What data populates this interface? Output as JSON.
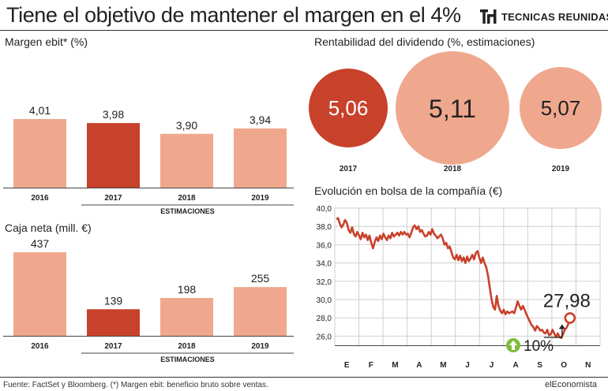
{
  "header": {
    "title": "Tiene el objetivo de mantener el margen en el 4%",
    "logo_text": "TECNICAS REUNIDAS"
  },
  "colors": {
    "highlight": "#c8412b",
    "light": "#efa88d",
    "line": "#c8412b"
  },
  "footer": {
    "source": "Fuente: FactSet y Bloomberg. (*) Margen ebit: beneficio bruto sobre ventas.",
    "brand": "elEconomista"
  },
  "chart_data": [
    {
      "type": "bar",
      "title": "Margen ebit* (%)",
      "categories": [
        "2016",
        "2017",
        "2018",
        "2019"
      ],
      "values": [
        4.01,
        3.98,
        3.9,
        3.94
      ],
      "value_labels": [
        "4,01",
        "3,98",
        "3,90",
        "3,94"
      ],
      "highlight_index": 1,
      "group_label": "ESTIMACIONES"
    },
    {
      "type": "bar",
      "title": "Caja neta (mill. €)",
      "categories": [
        "2016",
        "2017",
        "2018",
        "2019"
      ],
      "values": [
        437,
        139,
        198,
        255
      ],
      "value_labels": [
        "437",
        "139",
        "198",
        "255"
      ],
      "highlight_index": 1,
      "group_label": "ESTIMACIONES"
    },
    {
      "type": "bubble",
      "title": "Rentabilidad del dividendo (%, estimaciones)",
      "categories": [
        "2017",
        "2018",
        "2019"
      ],
      "values": [
        5.06,
        5.11,
        5.07
      ],
      "value_labels": [
        "5,06",
        "5,11",
        "5,07"
      ],
      "highlight_index": 0
    },
    {
      "type": "line",
      "title": "Evolución en bolsa de la compañía (€)",
      "x_labels": [
        "E",
        "F",
        "M",
        "A",
        "M",
        "J",
        "J",
        "A",
        "S",
        "O",
        "N"
      ],
      "ylim": [
        25,
        40
      ],
      "y_ticks": [
        26,
        28,
        30,
        32,
        34,
        36,
        38,
        40
      ],
      "y_tick_labels": [
        "26,0",
        "28,0",
        "30,0",
        "32,0",
        "34,0",
        "36,0",
        "38,0",
        "40,0"
      ],
      "grid": true,
      "last_value": 27.98,
      "last_value_label": "27,98",
      "annotation": "10%",
      "y": [
        38.8,
        38.9,
        38.3,
        37.9,
        38.2,
        38.7,
        38.4,
        37.6,
        37.3,
        37.9,
        37.2,
        36.9,
        37.4,
        37.0,
        36.6,
        37.3,
        36.8,
        37.1,
        36.5,
        37.0,
        36.2,
        35.6,
        36.3,
        36.8,
        36.4,
        37.0,
        36.6,
        37.2,
        36.8,
        36.5,
        37.0,
        36.7,
        37.3,
        36.9,
        37.1,
        37.3,
        37.0,
        37.4,
        37.1,
        37.4,
        37.1,
        37.2,
        36.8,
        37.3,
        37.9,
        38.1,
        37.7,
        38.0,
        37.4,
        37.6,
        37.2,
        36.9,
        37.0,
        37.4,
        37.1,
        37.7,
        37.2,
        37.0,
        36.7,
        36.9,
        37.1,
        36.7,
        36.0,
        36.2,
        35.6,
        35.8,
        35.2,
        34.6,
        34.4,
        34.9,
        34.3,
        34.8,
        34.2,
        34.6,
        34.0,
        34.7,
        34.2,
        34.5,
        34.9,
        34.4,
        35.1,
        35.3,
        34.6,
        34.0,
        34.6,
        34.0,
        33.5,
        32.6,
        31.3,
        30.0,
        29.2,
        28.9,
        30.4,
        29.3,
        28.8,
        28.5,
        28.9,
        28.4,
        28.7,
        28.5,
        28.6,
        28.7,
        28.5,
        29.1,
        29.8,
        29.3,
        28.9,
        29.3,
        28.9,
        28.4,
        28.0,
        27.6,
        27.2,
        27.0,
        26.6,
        27.1,
        26.9,
        26.6,
        26.7,
        26.4,
        26.3,
        26.7,
        26.1,
        26.2,
        26.7,
        26.3,
        25.9,
        26.3,
        25.9,
        25.8,
        26.2,
        26.7,
        26.9,
        27.3,
        27.98
      ]
    }
  ]
}
